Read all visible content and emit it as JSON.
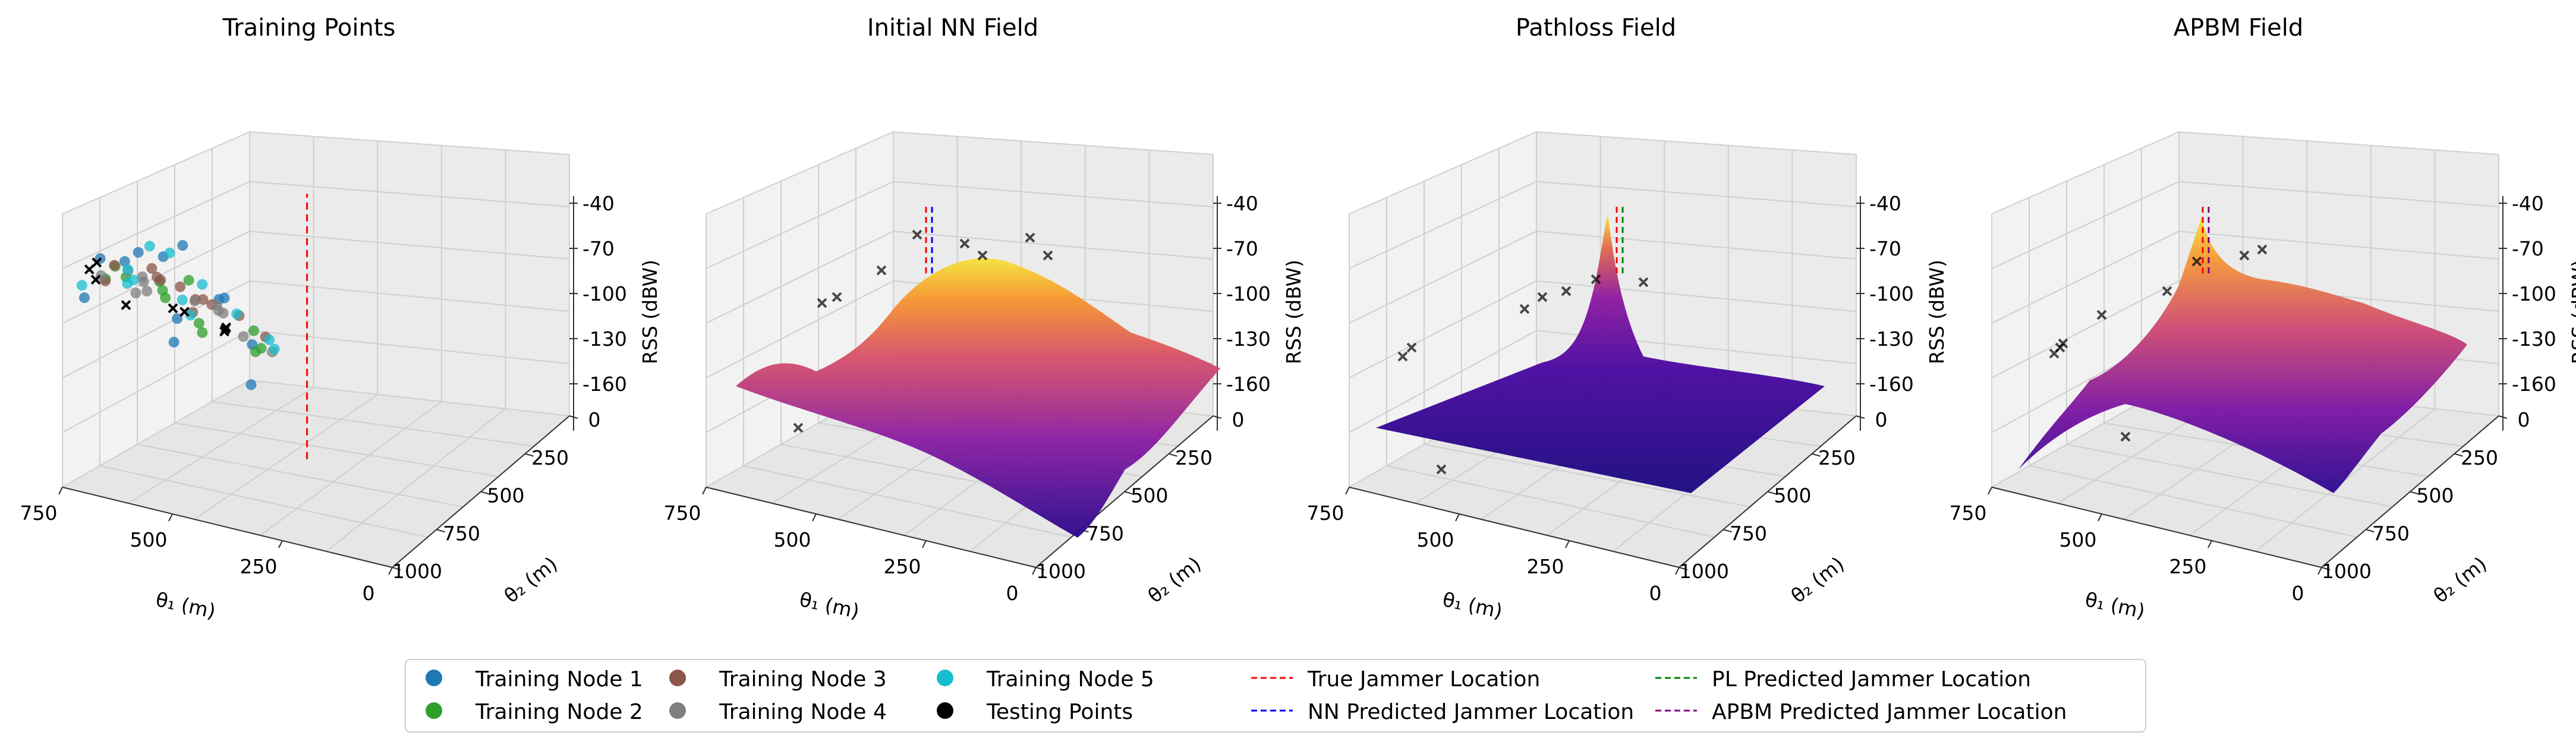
{
  "chart_data": [
    {
      "type": "scatter3d",
      "title": "Training Points",
      "xlabel": "θ₁ (m)",
      "ylabel": "θ₂ (m)",
      "zlabel": "RSS (dBW)",
      "x_ticks": [
        "750",
        "500",
        "250",
        "0"
      ],
      "y_ticks": [
        "0",
        "250",
        "500",
        "750",
        "1000"
      ],
      "z_ticks": [
        "-40",
        "-70",
        "-100",
        "-130",
        "-160"
      ],
      "zlim": [
        -165,
        -35
      ],
      "series": [
        {
          "name": "Training Node 1",
          "color": "#1f77b4",
          "points": [
            [
              0.22,
              0.3,
              0.55
            ],
            [
              0.3,
              0.55,
              0.62
            ],
            [
              0.5,
              0.4,
              0.71
            ],
            [
              0.62,
              0.28,
              0.48
            ],
            [
              0.75,
              0.62,
              0.35
            ],
            [
              0.4,
              0.7,
              0.6
            ],
            [
              0.18,
              0.65,
              0.52
            ],
            [
              0.55,
              0.75,
              0.42
            ],
            [
              0.85,
              0.45,
              0.3
            ],
            [
              0.35,
              0.2,
              0.76
            ],
            [
              0.68,
              0.5,
              0.55
            ],
            [
              0.45,
              0.58,
              0.4
            ]
          ]
        },
        {
          "name": "Training Node 2",
          "color": "#2ca02c",
          "points": [
            [
              0.25,
              0.4,
              0.58
            ],
            [
              0.4,
              0.3,
              0.66
            ],
            [
              0.58,
              0.45,
              0.62
            ],
            [
              0.7,
              0.35,
              0.5
            ],
            [
              0.8,
              0.55,
              0.44
            ],
            [
              0.52,
              0.62,
              0.38
            ],
            [
              0.3,
              0.7,
              0.45
            ],
            [
              0.62,
              0.2,
              0.7
            ],
            [
              0.9,
              0.4,
              0.45
            ],
            [
              0.46,
              0.48,
              0.52
            ],
            [
              0.74,
              0.7,
              0.3
            ],
            [
              0.2,
              0.55,
              0.55
            ]
          ]
        },
        {
          "name": "Training Node 3",
          "color": "#8c564b",
          "points": [
            [
              0.28,
              0.35,
              0.6
            ],
            [
              0.42,
              0.45,
              0.63
            ],
            [
              0.55,
              0.3,
              0.68
            ],
            [
              0.66,
              0.42,
              0.58
            ],
            [
              0.78,
              0.48,
              0.52
            ],
            [
              0.48,
              0.66,
              0.44
            ],
            [
              0.35,
              0.6,
              0.52
            ],
            [
              0.6,
              0.58,
              0.48
            ],
            [
              0.72,
              0.25,
              0.62
            ],
            [
              0.5,
              0.52,
              0.55
            ],
            [
              0.82,
              0.6,
              0.4
            ],
            [
              0.38,
              0.25,
              0.72
            ]
          ]
        },
        {
          "name": "Training Node 4",
          "color": "#7f7f7f",
          "points": [
            [
              0.2,
              0.45,
              0.56
            ],
            [
              0.36,
              0.38,
              0.64
            ],
            [
              0.52,
              0.22,
              0.72
            ],
            [
              0.64,
              0.55,
              0.5
            ],
            [
              0.76,
              0.4,
              0.56
            ],
            [
              0.44,
              0.72,
              0.4
            ],
            [
              0.28,
              0.62,
              0.48
            ],
            [
              0.58,
              0.66,
              0.42
            ],
            [
              0.88,
              0.55,
              0.38
            ],
            [
              0.46,
              0.35,
              0.6
            ],
            [
              0.7,
              0.64,
              0.36
            ],
            [
              0.32,
              0.5,
              0.5
            ]
          ]
        },
        {
          "name": "Training Node 5",
          "color": "#17becf",
          "points": [
            [
              0.24,
              0.25,
              0.62
            ],
            [
              0.38,
              0.5,
              0.68
            ],
            [
              0.54,
              0.38,
              0.74
            ],
            [
              0.68,
              0.3,
              0.58
            ],
            [
              0.8,
              0.66,
              0.36
            ],
            [
              0.46,
              0.6,
              0.46
            ],
            [
              0.32,
              0.44,
              0.56
            ],
            [
              0.62,
              0.48,
              0.6
            ],
            [
              0.92,
              0.5,
              0.42
            ],
            [
              0.42,
              0.28,
              0.7
            ],
            [
              0.72,
              0.56,
              0.48
            ],
            [
              0.26,
              0.58,
              0.5
            ]
          ]
        }
      ],
      "testing_points": {
        "name": "Testing Points",
        "color": "#000000",
        "points": [
          [
            0.18,
            0.4,
            0.6
          ],
          [
            0.2,
            0.42,
            0.62
          ],
          [
            0.22,
            0.38,
            0.58
          ],
          [
            0.45,
            0.55,
            0.45
          ],
          [
            0.58,
            0.42,
            0.52
          ],
          [
            0.65,
            0.6,
            0.4
          ],
          [
            0.72,
            0.48,
            0.46
          ],
          [
            0.4,
            0.3,
            0.56
          ],
          [
            0.55,
            0.75,
            0.3
          ]
        ]
      },
      "true_jammer_line": {
        "name": "True Jammer Location",
        "color": "#ff0000",
        "x": 0.5,
        "y": 0.45
      }
    },
    {
      "type": "surface3d",
      "title": "Initial NN Field",
      "xlabel": "θ₁ (m)",
      "ylabel": "θ₂ (m)",
      "zlabel": "RSS (dBW)",
      "x_ticks": [
        "750",
        "500",
        "250",
        "0"
      ],
      "y_ticks": [
        "0",
        "250",
        "500",
        "750",
        "1000"
      ],
      "z_ticks": [
        "-40",
        "-70",
        "-100",
        "-130",
        "-160"
      ],
      "lines": [
        {
          "name": "True Jammer Location",
          "color": "#ff0000"
        },
        {
          "name": "NN Predicted Jammer Location",
          "color": "#0000ff"
        }
      ]
    },
    {
      "type": "surface3d",
      "title": "Pathloss Field",
      "xlabel": "θ₁ (m)",
      "ylabel": "θ₂ (m)",
      "zlabel": "RSS (dBW)",
      "x_ticks": [
        "750",
        "500",
        "250",
        "0"
      ],
      "y_ticks": [
        "0",
        "250",
        "500",
        "750",
        "1000"
      ],
      "z_ticks": [
        "-40",
        "-70",
        "-100",
        "-130",
        "-160"
      ],
      "lines": [
        {
          "name": "True Jammer Location",
          "color": "#ff0000"
        },
        {
          "name": "PL Predicted Jammer Location",
          "color": "#008000"
        }
      ]
    },
    {
      "type": "surface3d",
      "title": "APBM Field",
      "xlabel": "θ₁ (m)",
      "ylabel": "θ₂ (m)",
      "zlabel": "RSS (dBW)",
      "x_ticks": [
        "750",
        "500",
        "250",
        "0"
      ],
      "y_ticks": [
        "0",
        "250",
        "500",
        "750",
        "1000"
      ],
      "z_ticks": [
        "-40",
        "-70",
        "-100",
        "-130",
        "-160"
      ],
      "lines": [
        {
          "name": "True Jammer Location",
          "color": "#ff0000"
        },
        {
          "name": "APBM Predicted Jammer Location",
          "color": "#800080"
        }
      ]
    }
  ],
  "legend": {
    "placement": "bottom-center",
    "entries": [
      {
        "label": "Training Node 1",
        "kind": "marker",
        "color": "#1f77b4"
      },
      {
        "label": "Training Node 2",
        "kind": "marker",
        "color": "#2ca02c"
      },
      {
        "label": "Training Node 3",
        "kind": "marker",
        "color": "#8c564b"
      },
      {
        "label": "Training Node 4",
        "kind": "marker",
        "color": "#7f7f7f"
      },
      {
        "label": "Training Node 5",
        "kind": "marker",
        "color": "#17becf"
      },
      {
        "label": "Testing Points",
        "kind": "marker",
        "color": "#000000"
      },
      {
        "label": "True Jammer Location",
        "kind": "dashed",
        "color": "#ff0000"
      },
      {
        "label": "NN Predicted Jammer Location",
        "kind": "dashed",
        "color": "#0000ff"
      },
      {
        "label": "PL Predicted Jammer Location",
        "kind": "dashed",
        "color": "#008000"
      },
      {
        "label": "APBM Predicted Jammer Location",
        "kind": "dashed",
        "color": "#800080"
      }
    ]
  }
}
